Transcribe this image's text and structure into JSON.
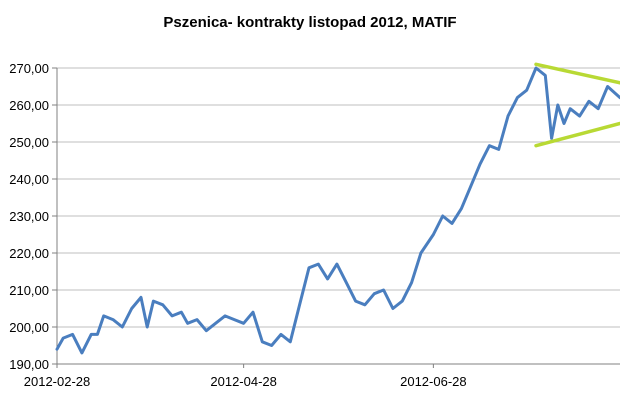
{
  "chart_data": {
    "type": "line",
    "title": "Pszenica- kontrakty listopad 2012, MATIF",
    "xlabel": "",
    "ylabel": "",
    "ylim": [
      190,
      270
    ],
    "y_ticks": [
      "190,00",
      "200,00",
      "210,00",
      "220,00",
      "230,00",
      "240,00",
      "250,00",
      "260,00",
      "270,00"
    ],
    "y_tick_values": [
      190,
      200,
      210,
      220,
      230,
      240,
      250,
      260,
      270
    ],
    "x_ticks": [
      "2012-02-28",
      "2012-04-28",
      "2012-06-28"
    ],
    "x_tick_values": [
      "2012-02-28",
      "2012-04-28",
      "2012-06-28"
    ],
    "xlim": [
      "2012-02-28",
      "2012-08-27"
    ],
    "grid": "horizontal",
    "legend": "none",
    "series": [
      {
        "color": "#4a7ebf",
        "x": [
          "2012-02-28",
          "2012-03-01",
          "2012-03-04",
          "2012-03-07",
          "2012-03-10",
          "2012-03-12",
          "2012-03-14",
          "2012-03-17",
          "2012-03-20",
          "2012-03-23",
          "2012-03-26",
          "2012-03-28",
          "2012-03-30",
          "2012-04-02",
          "2012-04-05",
          "2012-04-08",
          "2012-04-10",
          "2012-04-13",
          "2012-04-16",
          "2012-04-19",
          "2012-04-22",
          "2012-04-25",
          "2012-04-28",
          "2012-05-01",
          "2012-05-04",
          "2012-05-07",
          "2012-05-10",
          "2012-05-13",
          "2012-05-16",
          "2012-05-19",
          "2012-05-22",
          "2012-05-25",
          "2012-05-28",
          "2012-05-31",
          "2012-06-03",
          "2012-06-06",
          "2012-06-09",
          "2012-06-12",
          "2012-06-15",
          "2012-06-18",
          "2012-06-21",
          "2012-06-24",
          "2012-06-28",
          "2012-07-01",
          "2012-07-04",
          "2012-07-07",
          "2012-07-10",
          "2012-07-13",
          "2012-07-16",
          "2012-07-19",
          "2012-07-22",
          "2012-07-25",
          "2012-07-28",
          "2012-07-31",
          "2012-08-03",
          "2012-08-05",
          "2012-08-07",
          "2012-08-09",
          "2012-08-11",
          "2012-08-14",
          "2012-08-17",
          "2012-08-20",
          "2012-08-23",
          "2012-08-27"
        ],
        "values": [
          194,
          197,
          198,
          193,
          198,
          198,
          203,
          202,
          200,
          205,
          208,
          200,
          207,
          206,
          203,
          204,
          201,
          202,
          199,
          201,
          203,
          202,
          201,
          204,
          196,
          195,
          198,
          196,
          206,
          216,
          217,
          213,
          217,
          212,
          207,
          206,
          209,
          210,
          205,
          207,
          212,
          220,
          225,
          230,
          228,
          232,
          238,
          244,
          249,
          248,
          257,
          262,
          264,
          270,
          268,
          251,
          260,
          255,
          259,
          257,
          261,
          259,
          265,
          262
        ]
      }
    ],
    "annotations": [
      {
        "type": "triangle-pattern",
        "color": "#b8d934",
        "upper_line": {
          "x": [
            "2012-07-31",
            "2012-08-27"
          ],
          "y": [
            271,
            266
          ]
        },
        "lower_line": {
          "x": [
            "2012-07-31",
            "2012-08-27"
          ],
          "y": [
            249,
            255
          ]
        }
      }
    ]
  }
}
